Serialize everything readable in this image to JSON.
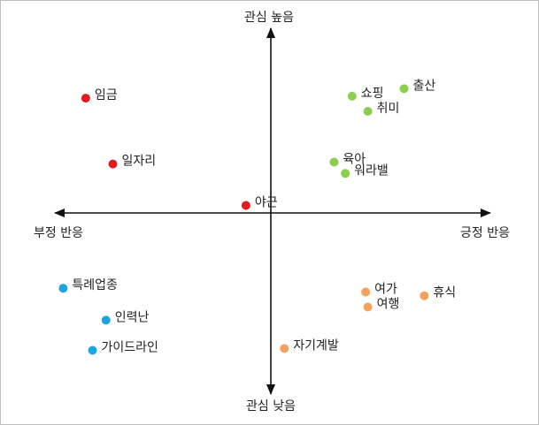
{
  "chart_data": {
    "type": "scatter",
    "title": "",
    "axes": {
      "top_label": "관심 높음",
      "bottom_label": "관심 낮음",
      "left_label": "부정 반응",
      "right_label": "긍정 반응"
    },
    "xlim": [
      -10,
      10
    ],
    "ylim": [
      -10,
      10
    ],
    "series": [
      {
        "color": "#e41a1c",
        "points": [
          {
            "label": "임금",
            "x": -8.2,
            "y": 6.1
          },
          {
            "label": "일자리",
            "x": -7.0,
            "y": 2.6
          },
          {
            "label": "야근",
            "x": -1.1,
            "y": 0.4
          }
        ]
      },
      {
        "color": "#8ccf4d",
        "points": [
          {
            "label": "출산",
            "x": 5.9,
            "y": 6.6
          },
          {
            "label": "쇼핑",
            "x": 3.6,
            "y": 6.2
          },
          {
            "label": "취미",
            "x": 4.3,
            "y": 5.4
          },
          {
            "label": "육아",
            "x": 2.8,
            "y": 2.7
          },
          {
            "label": "워라밸",
            "x": 3.3,
            "y": 2.1
          }
        ]
      },
      {
        "color": "#1aa7e0",
        "points": [
          {
            "label": "특례업종",
            "x": -9.2,
            "y": -4.0
          },
          {
            "label": "인력난",
            "x": -7.3,
            "y": -5.7
          },
          {
            "label": "가이드라인",
            "x": -7.9,
            "y": -7.3
          }
        ]
      },
      {
        "color": "#f4a259",
        "points": [
          {
            "label": "여가",
            "x": 4.2,
            "y": -4.2
          },
          {
            "label": "여행",
            "x": 4.3,
            "y": -5.0
          },
          {
            "label": "휴식",
            "x": 6.8,
            "y": -4.4
          },
          {
            "label": "자기계발",
            "x": 0.6,
            "y": -7.2
          }
        ]
      }
    ]
  }
}
